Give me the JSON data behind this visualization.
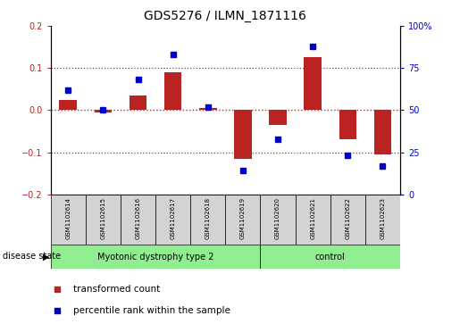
{
  "title": "GDS5276 / ILMN_1871116",
  "samples": [
    "GSM1102614",
    "GSM1102615",
    "GSM1102616",
    "GSM1102617",
    "GSM1102618",
    "GSM1102619",
    "GSM1102620",
    "GSM1102621",
    "GSM1102622",
    "GSM1102623"
  ],
  "transformed_count": [
    0.025,
    -0.005,
    0.035,
    0.09,
    0.005,
    -0.115,
    -0.035,
    0.125,
    -0.07,
    -0.105
  ],
  "percentile_rank": [
    62,
    50,
    68,
    83,
    52,
    14,
    33,
    88,
    23,
    17
  ],
  "group_boundary": 6,
  "ylim_left": [
    -0.2,
    0.2
  ],
  "ylim_right": [
    0,
    100
  ],
  "yticks_left": [
    -0.2,
    -0.1,
    0.0,
    0.1,
    0.2
  ],
  "yticks_right": [
    0,
    25,
    50,
    75,
    100
  ],
  "ytick_right_labels": [
    "0",
    "25",
    "50",
    "75",
    "100%"
  ],
  "bar_color": "#bb2222",
  "dot_color": "#0000cc",
  "zero_line_color": "#cc2222",
  "grid_color": "#555555",
  "plot_bg": "#ffffff",
  "label_bg": "#d3d3d3",
  "group_color": "#90ee90",
  "legend_bar_label": "transformed count",
  "legend_dot_label": "percentile rank within the sample",
  "disease_state_label": "disease state",
  "group1_label": "Myotonic dystrophy type 2",
  "group2_label": "control"
}
